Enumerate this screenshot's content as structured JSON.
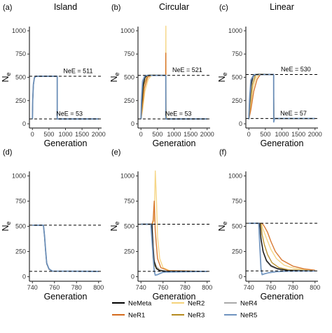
{
  "colors": {
    "NeMeta": "#000000",
    "NeR1": "#d46a1c",
    "NeR2": "#f5d27a",
    "NeR3": "#b58a1e",
    "NeR4": "#a9a9a9",
    "NeR5": "#6f93bf"
  },
  "legend": [
    {
      "name": "NeMeta",
      "color": "#000000"
    },
    {
      "name": "NeR1",
      "color": "#d46a1c"
    },
    {
      "name": "NeR2",
      "color": "#f5d27a"
    },
    {
      "name": "NeR3",
      "color": "#b58a1e"
    },
    {
      "name": "NeR4",
      "color": "#a9a9a9"
    },
    {
      "name": "NeR5",
      "color": "#6f93bf"
    }
  ],
  "chart_data": [
    {
      "id": "a",
      "tag": "(a)",
      "column_title": "Island",
      "type": "line",
      "xlabel": "Generation",
      "ylabel": "N",
      "ylabel_sub": "e",
      "xlim": [
        0,
        2000
      ],
      "ylim": [
        0,
        1000
      ],
      "xticks": [
        0,
        500,
        1000,
        1500,
        2000
      ],
      "yticks": [
        0,
        250,
        500,
        750,
        1000
      ],
      "hlines": [
        511,
        53
      ],
      "annotations": [
        {
          "text": "NeE = 511",
          "x": 1380,
          "y": 545
        },
        {
          "text": "NeE = 53",
          "x": 1120,
          "y": 88
        }
      ],
      "series": [
        {
          "name": "NeMeta",
          "x": [
            0,
            10,
            30,
            60,
            100,
            750,
            751,
            760,
            800,
            2000
          ],
          "y": [
            50,
            250,
            420,
            495,
            511,
            511,
            53,
            53,
            53,
            53
          ]
        },
        {
          "name": "NeR5",
          "x": [
            0,
            10,
            30,
            60,
            100,
            750,
            751,
            760,
            800,
            2000
          ],
          "y": [
            50,
            255,
            425,
            495,
            511,
            511,
            53,
            53,
            53,
            53
          ]
        }
      ]
    },
    {
      "id": "b",
      "tag": "(b)",
      "column_title": "Circular",
      "type": "line",
      "xlabel": "Generation",
      "ylabel": "N",
      "ylabel_sub": "e",
      "xlim": [
        0,
        2000
      ],
      "ylim": [
        0,
        1000
      ],
      "xticks": [
        0,
        500,
        1000,
        1500,
        2000
      ],
      "yticks": [
        0,
        250,
        500,
        750,
        1000
      ],
      "hlines": [
        521,
        53
      ],
      "annotations": [
        {
          "text": "NeE = 521",
          "x": 1400,
          "y": 555
        },
        {
          "text": "NeE = 53",
          "x": 1130,
          "y": 88
        }
      ],
      "series": [
        {
          "name": "NeMeta",
          "x": [
            0,
            20,
            60,
            120,
            200,
            750,
            752,
            770,
            2000
          ],
          "y": [
            50,
            200,
            400,
            500,
            521,
            521,
            53,
            53,
            53
          ]
        },
        {
          "name": "NeR1",
          "x": [
            0,
            40,
            100,
            200,
            300,
            748,
            750,
            752,
            755,
            770,
            2000
          ],
          "y": [
            50,
            180,
            380,
            500,
            521,
            521,
            760,
            300,
            150,
            53,
            53
          ]
        },
        {
          "name": "NeR2",
          "x": [
            0,
            50,
            120,
            220,
            320,
            748,
            752,
            755,
            758,
            780,
            2000
          ],
          "y": [
            50,
            150,
            350,
            480,
            521,
            521,
            1050,
            400,
            150,
            53,
            53
          ]
        },
        {
          "name": "NeR3",
          "x": [
            0,
            30,
            90,
            180,
            260,
            750,
            752,
            760,
            2000
          ],
          "y": [
            50,
            200,
            420,
            510,
            525,
            521,
            180,
            53,
            53
          ]
        },
        {
          "name": "NeR4",
          "x": [
            0,
            20,
            70,
            150,
            230,
            750,
            752,
            760,
            2000
          ],
          "y": [
            50,
            240,
            450,
            515,
            521,
            521,
            120,
            53,
            53
          ]
        },
        {
          "name": "NeR5",
          "x": [
            0,
            15,
            50,
            120,
            200,
            750,
            752,
            760,
            2000
          ],
          "y": [
            50,
            260,
            460,
            518,
            521,
            521,
            53,
            53,
            53
          ]
        }
      ]
    },
    {
      "id": "c",
      "tag": "(c)",
      "column_title": "Linear",
      "type": "line",
      "xlabel": "Generation",
      "ylabel": "N",
      "ylabel_sub": "e",
      "xlim": [
        0,
        2000
      ],
      "ylim": [
        0,
        1000
      ],
      "xticks": [
        0,
        500,
        1000,
        1500,
        2000
      ],
      "yticks": [
        0,
        250,
        500,
        750,
        1000
      ],
      "hlines": [
        530,
        57
      ],
      "annotations": [
        {
          "text": "NeE = 530",
          "x": 1420,
          "y": 565
        },
        {
          "text": "NeE = 57",
          "x": 1350,
          "y": 92
        }
      ],
      "series": [
        {
          "name": "NeMeta",
          "x": [
            0,
            20,
            60,
            120,
            200,
            750,
            755,
            780,
            2000
          ],
          "y": [
            50,
            200,
            400,
            510,
            530,
            530,
            60,
            57,
            57
          ]
        },
        {
          "name": "NeR1",
          "x": [
            0,
            60,
            150,
            250,
            350,
            750,
            755,
            900,
            1100,
            2000
          ],
          "y": [
            50,
            150,
            350,
            480,
            530,
            530,
            60,
            57,
            57,
            57
          ]
        },
        {
          "name": "NeR2",
          "x": [
            0,
            50,
            120,
            220,
            320,
            750,
            755,
            850,
            1000,
            2000
          ],
          "y": [
            50,
            170,
            380,
            500,
            530,
            530,
            60,
            57,
            57,
            57
          ]
        },
        {
          "name": "NeR3",
          "x": [
            0,
            40,
            110,
            200,
            280,
            750,
            755,
            820,
            2000
          ],
          "y": [
            50,
            200,
            420,
            520,
            535,
            530,
            60,
            57,
            57
          ]
        },
        {
          "name": "NeR4",
          "x": [
            0,
            30,
            90,
            170,
            250,
            750,
            755,
            800,
            2000
          ],
          "y": [
            50,
            230,
            450,
            525,
            530,
            530,
            60,
            57,
            57
          ]
        },
        {
          "name": "NeR5",
          "x": [
            0,
            20,
            60,
            150,
            230,
            750,
            752,
            780,
            2000
          ],
          "y": [
            50,
            250,
            470,
            528,
            530,
            530,
            20,
            57,
            57
          ]
        }
      ]
    },
    {
      "id": "d",
      "tag": "(d)",
      "column_title": "",
      "type": "line",
      "xlabel": "Generation",
      "ylabel": "N",
      "ylabel_sub": "e",
      "xlim": [
        740,
        800
      ],
      "ylim": [
        0,
        1000
      ],
      "xticks": [
        740,
        760,
        780,
        800
      ],
      "yticks": [
        0,
        250,
        500,
        750,
        1000
      ],
      "hlines": [
        511,
        53
      ],
      "annotations": [],
      "series": [
        {
          "name": "NeMeta",
          "x": [
            740,
            750,
            751,
            752,
            753,
            755,
            758,
            800
          ],
          "y": [
            511,
            511,
            400,
            250,
            130,
            75,
            55,
            53
          ]
        },
        {
          "name": "NeR5",
          "x": [
            740,
            750,
            751,
            752,
            753,
            755,
            758,
            800
          ],
          "y": [
            511,
            511,
            405,
            255,
            135,
            78,
            56,
            53
          ]
        }
      ]
    },
    {
      "id": "e",
      "tag": "(e)",
      "column_title": "",
      "type": "line",
      "xlabel": "Generation",
      "ylabel": "N",
      "ylabel_sub": "e",
      "xlim": [
        740,
        800
      ],
      "ylim": [
        0,
        1000
      ],
      "xticks": [
        740,
        760,
        780,
        800
      ],
      "yticks": [
        0,
        250,
        500,
        750,
        1000
      ],
      "hlines": [
        521,
        53
      ],
      "annotations": [],
      "series": [
        {
          "name": "NeMeta",
          "x": [
            740,
            750,
            751,
            752,
            754,
            757,
            762,
            800
          ],
          "y": [
            521,
            521,
            300,
            150,
            80,
            60,
            54,
            53
          ]
        },
        {
          "name": "NeR1",
          "x": [
            740,
            750,
            751,
            752,
            753,
            755,
            758,
            765,
            800
          ],
          "y": [
            521,
            521,
            560,
            750,
            450,
            180,
            90,
            60,
            53
          ]
        },
        {
          "name": "NeR2",
          "x": [
            740,
            750,
            752,
            753,
            754,
            755,
            757,
            760,
            766,
            800
          ],
          "y": [
            521,
            521,
            560,
            1050,
            780,
            400,
            180,
            90,
            60,
            53
          ]
        },
        {
          "name": "NeR3",
          "x": [
            740,
            750,
            751,
            752,
            754,
            757,
            762,
            800
          ],
          "y": [
            521,
            521,
            180,
            120,
            85,
            65,
            56,
            53
          ]
        },
        {
          "name": "NeR4",
          "x": [
            740,
            750,
            751,
            752,
            754,
            757,
            762,
            800
          ],
          "y": [
            521,
            521,
            190,
            160,
            100,
            70,
            55,
            53
          ]
        },
        {
          "name": "NeR5",
          "x": [
            740,
            749,
            751,
            752,
            753,
            755,
            760,
            800
          ],
          "y": [
            521,
            521,
            200,
            60,
            15,
            20,
            45,
            53
          ]
        }
      ]
    },
    {
      "id": "f",
      "tag": "(f)",
      "column_title": "",
      "type": "line",
      "xlabel": "Generation",
      "ylabel": "N",
      "ylabel_sub": "e",
      "xlim": [
        740,
        800
      ],
      "ylim": [
        0,
        1000
      ],
      "xticks": [
        740,
        760,
        780,
        800
      ],
      "yticks": [
        0,
        250,
        500,
        750,
        1000
      ],
      "hlines": [
        530,
        57
      ],
      "annotations": [],
      "series": [
        {
          "name": "NeMeta",
          "x": [
            740,
            750,
            751,
            753,
            756,
            760,
            766,
            775,
            800
          ],
          "y": [
            530,
            530,
            380,
            250,
            160,
            110,
            80,
            62,
            57
          ]
        },
        {
          "name": "NeR1",
          "x": [
            740,
            752,
            754,
            757,
            760,
            764,
            770,
            780,
            790,
            800
          ],
          "y": [
            530,
            530,
            500,
            440,
            350,
            250,
            165,
            105,
            78,
            65
          ]
        },
        {
          "name": "NeR2",
          "x": [
            740,
            751,
            753,
            756,
            760,
            765,
            772,
            782,
            800
          ],
          "y": [
            530,
            530,
            470,
            380,
            270,
            180,
            115,
            80,
            62
          ]
        },
        {
          "name": "NeR3",
          "x": [
            740,
            751,
            752,
            754,
            757,
            761,
            767,
            776,
            800
          ],
          "y": [
            530,
            530,
            420,
            320,
            220,
            140,
            92,
            68,
            58
          ]
        },
        {
          "name": "NeR4",
          "x": [
            740,
            750,
            751,
            753,
            756,
            760,
            766,
            775,
            800
          ],
          "y": [
            530,
            530,
            360,
            240,
            150,
            100,
            74,
            62,
            57
          ]
        },
        {
          "name": "NeR5",
          "x": [
            740,
            749,
            750,
            751,
            752,
            754,
            758,
            765,
            775,
            800
          ],
          "y": [
            530,
            530,
            300,
            80,
            20,
            28,
            40,
            50,
            55,
            57
          ]
        }
      ]
    }
  ]
}
